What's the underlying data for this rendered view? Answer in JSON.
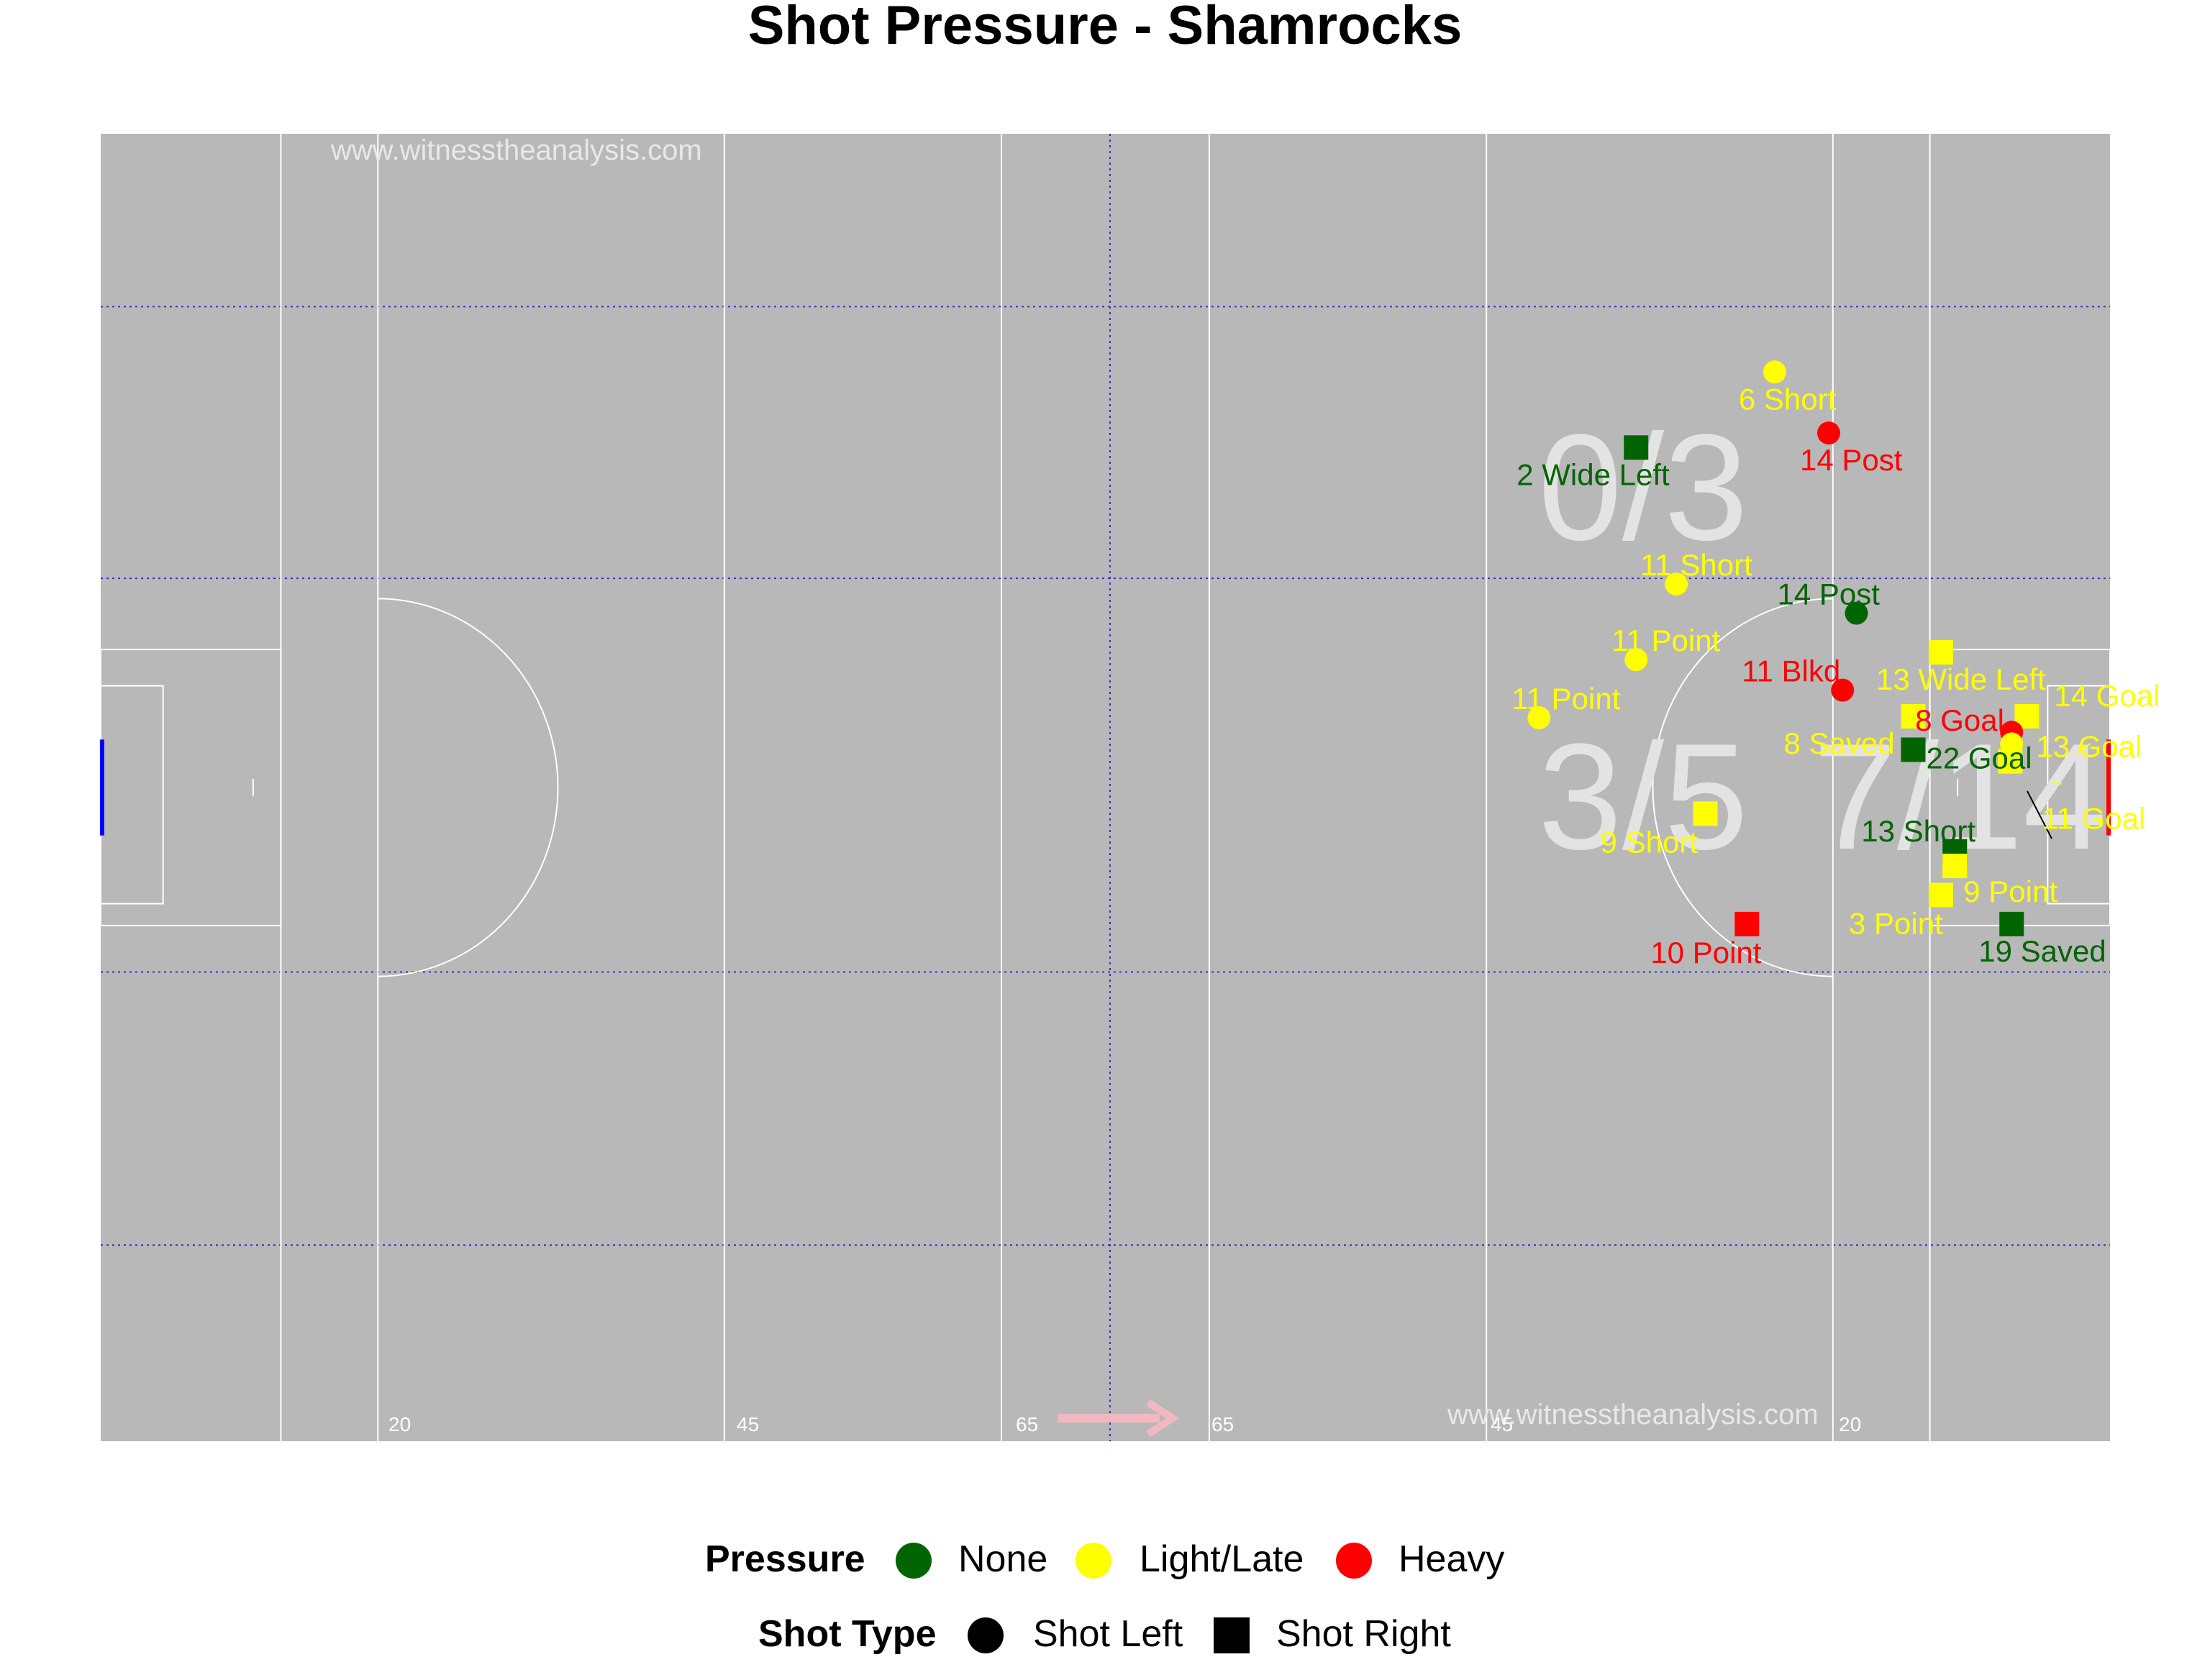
{
  "chart_data": {
    "type": "scatter",
    "title": "Shot Pressure - Shamrocks",
    "xlim": [
      0,
      145
    ],
    "ylim": [
      0,
      90
    ],
    "watermarks": [
      "www.witnesstheanalysis.com",
      "www.witnesstheanalysis.com"
    ],
    "yard_labels": [
      "20",
      "45",
      "65",
      "65",
      "45",
      "20"
    ],
    "zone_labels": [
      "0/3",
      "3/5",
      "7/14"
    ],
    "colors": {
      "None": "#006400",
      "Light/Late": "#ffff00",
      "Heavy": "#ff0000",
      "pitch": "#b8b8b8",
      "lines": "#ffffff",
      "grid": "#3333cc"
    },
    "points": [
      {
        "x": 120.8,
        "y": 73.6,
        "pressure": "Light/Late",
        "shot": "Shot Left",
        "label": "6 Short"
      },
      {
        "x": 124.7,
        "y": 69.4,
        "pressure": "Heavy",
        "shot": "Shot Left",
        "label": "14 Post"
      },
      {
        "x": 110.8,
        "y": 68.4,
        "pressure": "None",
        "shot": "Shot Right",
        "label": "2 Wide Left"
      },
      {
        "x": 113.7,
        "y": 59.0,
        "pressure": "Light/Late",
        "shot": "Shot Left",
        "label": "11 Short"
      },
      {
        "x": 126.7,
        "y": 57.0,
        "pressure": "None",
        "shot": "Shot Left",
        "label": "14 Post"
      },
      {
        "x": 132.8,
        "y": 54.3,
        "pressure": "Light/Late",
        "shot": "Shot Right",
        "label": "13 Wide Left"
      },
      {
        "x": 110.8,
        "y": 53.8,
        "pressure": "Light/Late",
        "shot": "Shot Left",
        "label": "11 Point"
      },
      {
        "x": 125.7,
        "y": 51.7,
        "pressure": "Heavy",
        "shot": "Shot Left",
        "label": "11 Blkd"
      },
      {
        "x": 103.8,
        "y": 49.8,
        "pressure": "Light/Late",
        "shot": "Shot Left",
        "label": "11 Point"
      },
      {
        "x": 130.8,
        "y": 49.9,
        "pressure": "Light/Late",
        "shot": "Shot Right",
        "label": "8 Saved"
      },
      {
        "x": 139.0,
        "y": 49.9,
        "pressure": "Light/Late",
        "shot": "Shot Right",
        "label": "14 Goal"
      },
      {
        "x": 137.9,
        "y": 48.8,
        "pressure": "Heavy",
        "shot": "Shot Left",
        "label": "8 Goal"
      },
      {
        "x": 137.9,
        "y": 48.0,
        "pressure": "Light/Late",
        "shot": "Shot Left",
        "label": "13 Goal"
      },
      {
        "x": 130.8,
        "y": 47.6,
        "pressure": "None",
        "shot": "Shot Right",
        "label": "22 Goal"
      },
      {
        "x": 137.8,
        "y": 46.8,
        "pressure": "Light/Late",
        "shot": "Shot Right",
        "label": "11 Goal"
      },
      {
        "x": 115.8,
        "y": 43.2,
        "pressure": "Light/Late",
        "shot": "Shot Right",
        "label": "9 Short"
      },
      {
        "x": 133.8,
        "y": 40.6,
        "pressure": "None",
        "shot": "Shot Right",
        "label": "13 Short"
      },
      {
        "x": 133.8,
        "y": 39.6,
        "pressure": "Light/Late",
        "shot": "Shot Right",
        "label": "9 Point"
      },
      {
        "x": 132.8,
        "y": 37.6,
        "pressure": "Light/Late",
        "shot": "Shot Right",
        "label": "3 Point"
      },
      {
        "x": 118.8,
        "y": 35.6,
        "pressure": "Heavy",
        "shot": "Shot Right",
        "label": "10 Point"
      },
      {
        "x": 137.9,
        "y": 35.6,
        "pressure": "None",
        "shot": "Shot Right",
        "label": "19 Saved"
      }
    ],
    "legend": {
      "pressure_title": "Pressure",
      "pressure_items": [
        "None",
        "Light/Late",
        "Heavy"
      ],
      "shot_title": "Shot Type",
      "shot_items": [
        "Shot Left",
        "Shot Right"
      ]
    }
  }
}
